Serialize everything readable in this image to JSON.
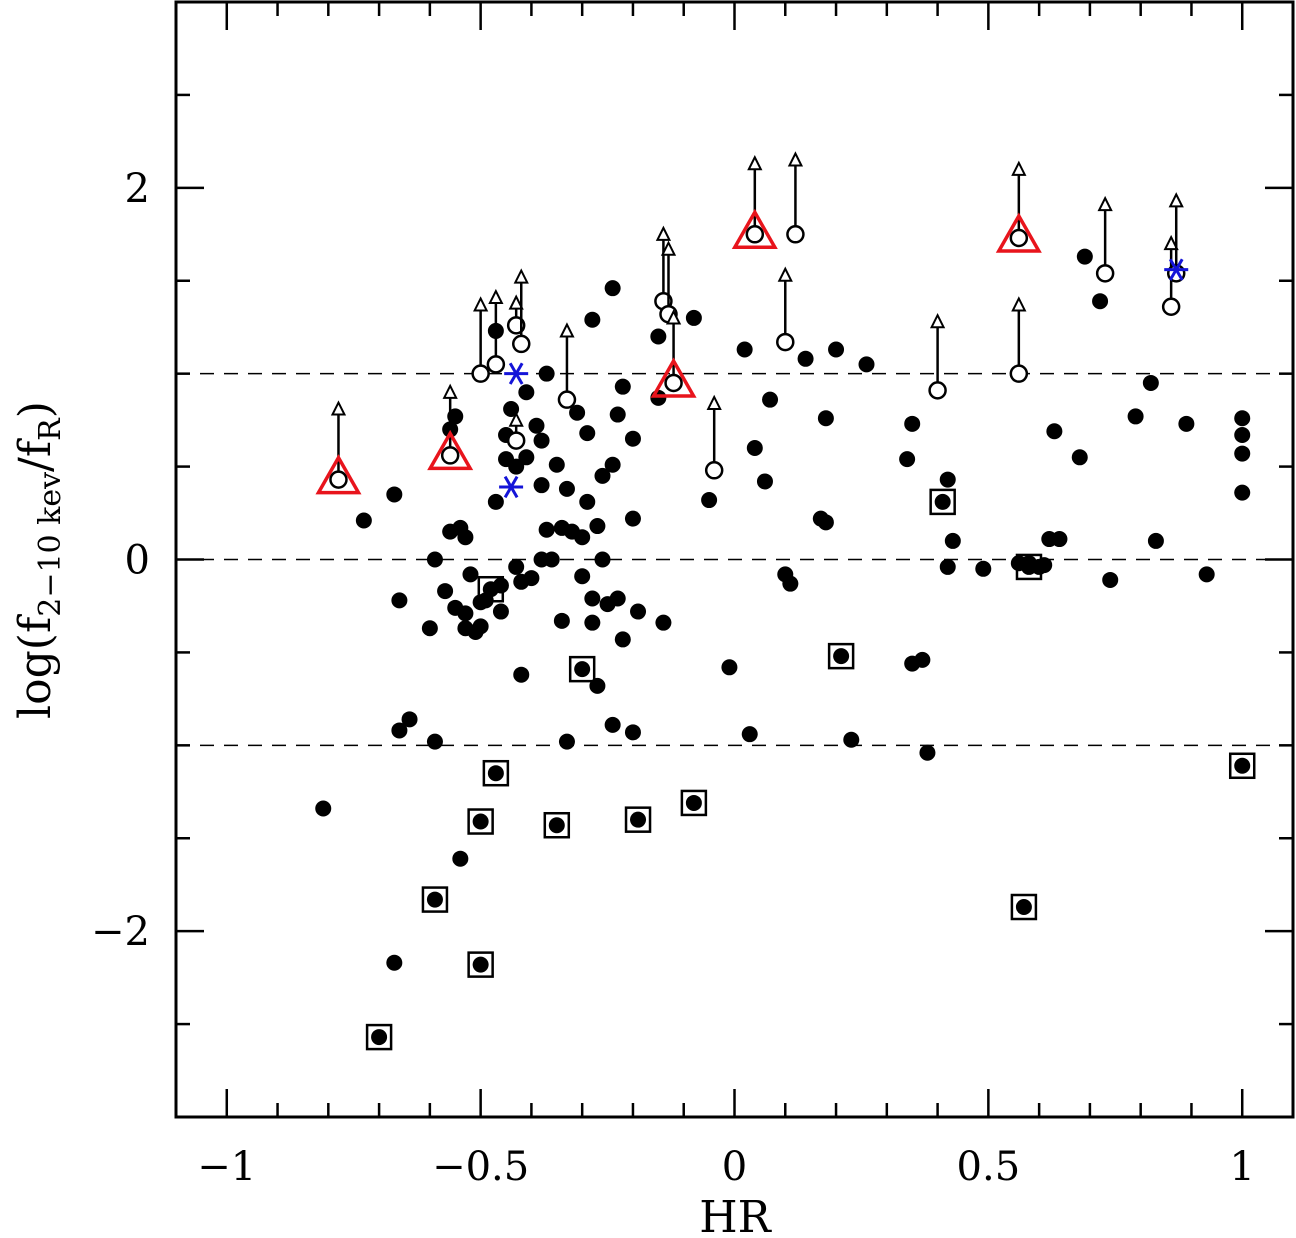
{
  "chart_data": {
    "type": "scatter",
    "title": "",
    "xlabel": "HR",
    "ylabel": "log(f",
    "ylabel_sub": "2−10 kev",
    "ylabel_mid": "/f",
    "ylabel_sub2": "R",
    "ylabel_end": ")",
    "xlim": [
      -1.1,
      1.1
    ],
    "ylim": [
      -3.0,
      3.0
    ],
    "x_ticks": [
      {
        "value": -1,
        "label": "−1"
      },
      {
        "value": -0.5,
        "label": "−0.5"
      },
      {
        "value": 0,
        "label": "0"
      },
      {
        "value": 0.5,
        "label": "0.5"
      },
      {
        "value": 1,
        "label": "1"
      }
    ],
    "y_ticks": [
      {
        "value": -2,
        "label": "−2"
      },
      {
        "value": 0,
        "label": "0"
      },
      {
        "value": 2,
        "label": "2"
      }
    ],
    "x_minor_step": 0.1,
    "y_minor_step": 0.5,
    "reference_lines": [
      1,
      0,
      -1
    ],
    "colors": {
      "filled": "#000000",
      "triangle": "#e8141c",
      "star": "#1414d8"
    },
    "series": [
      {
        "marker": "filled-circle",
        "points": [
          [
            -0.81,
            -1.34
          ],
          [
            -0.73,
            0.21
          ],
          [
            -0.67,
            0.35
          ],
          [
            -0.67,
            -2.17
          ],
          [
            -0.66,
            -0.22
          ],
          [
            -0.66,
            -0.92
          ],
          [
            -0.64,
            -0.86
          ],
          [
            -0.6,
            -0.37
          ],
          [
            -0.59,
            0.0
          ],
          [
            -0.59,
            -0.98
          ],
          [
            -0.57,
            -0.17
          ],
          [
            -0.56,
            0.7
          ],
          [
            -0.56,
            0.15
          ],
          [
            -0.55,
            0.77
          ],
          [
            -0.55,
            -0.26
          ],
          [
            -0.54,
            0.17
          ],
          [
            -0.54,
            -1.61
          ],
          [
            -0.53,
            0.12
          ],
          [
            -0.53,
            -0.29
          ],
          [
            -0.53,
            -0.37
          ],
          [
            -0.52,
            -0.08
          ],
          [
            -0.51,
            -0.39
          ],
          [
            -0.5,
            -0.36
          ],
          [
            -0.5,
            -0.23
          ],
          [
            -0.49,
            -0.22
          ],
          [
            -0.47,
            1.23
          ],
          [
            -0.47,
            0.31
          ],
          [
            -0.46,
            -0.14
          ],
          [
            -0.46,
            -0.28
          ],
          [
            -0.45,
            0.67
          ],
          [
            -0.45,
            0.54
          ],
          [
            -0.44,
            0.81
          ],
          [
            -0.43,
            0.5
          ],
          [
            -0.43,
            -0.04
          ],
          [
            -0.42,
            -0.12
          ],
          [
            -0.42,
            -0.62
          ],
          [
            -0.41,
            0.9
          ],
          [
            -0.41,
            0.55
          ],
          [
            -0.4,
            -0.1
          ],
          [
            -0.39,
            0.72
          ],
          [
            -0.38,
            0.64
          ],
          [
            -0.38,
            0.4
          ],
          [
            -0.38,
            0.0
          ],
          [
            -0.37,
            0.16
          ],
          [
            -0.37,
            1.0
          ],
          [
            -0.36,
            0.0
          ],
          [
            -0.35,
            0.51
          ],
          [
            -0.34,
            0.17
          ],
          [
            -0.34,
            -0.33
          ],
          [
            -0.33,
            0.38
          ],
          [
            -0.33,
            -0.98
          ],
          [
            -0.32,
            0.15
          ],
          [
            -0.31,
            0.79
          ],
          [
            -0.3,
            0.12
          ],
          [
            -0.3,
            -0.09
          ],
          [
            -0.29,
            0.31
          ],
          [
            -0.29,
            0.68
          ],
          [
            -0.28,
            1.29
          ],
          [
            -0.28,
            -0.21
          ],
          [
            -0.28,
            -0.34
          ],
          [
            -0.27,
            0.18
          ],
          [
            -0.27,
            -0.68
          ],
          [
            -0.26,
            0.45
          ],
          [
            -0.26,
            0.0
          ],
          [
            -0.25,
            -0.24
          ],
          [
            -0.24,
            1.46
          ],
          [
            -0.24,
            0.51
          ],
          [
            -0.24,
            -0.89
          ],
          [
            -0.23,
            0.78
          ],
          [
            -0.23,
            -0.21
          ],
          [
            -0.22,
            0.93
          ],
          [
            -0.22,
            -0.43
          ],
          [
            -0.2,
            0.65
          ],
          [
            -0.2,
            0.22
          ],
          [
            -0.2,
            -0.93
          ],
          [
            -0.19,
            -0.28
          ],
          [
            -0.15,
            0.87
          ],
          [
            -0.15,
            1.2
          ],
          [
            -0.14,
            -0.34
          ],
          [
            -0.08,
            1.3
          ],
          [
            -0.05,
            0.32
          ],
          [
            -0.01,
            -0.58
          ],
          [
            0.02,
            1.13
          ],
          [
            0.03,
            -0.94
          ],
          [
            0.04,
            0.6
          ],
          [
            0.06,
            0.42
          ],
          [
            0.07,
            0.86
          ],
          [
            0.1,
            -0.08
          ],
          [
            0.11,
            -0.13
          ],
          [
            0.14,
            1.08
          ],
          [
            0.17,
            0.22
          ],
          [
            0.18,
            0.2
          ],
          [
            0.18,
            0.76
          ],
          [
            0.2,
            1.13
          ],
          [
            0.23,
            -0.97
          ],
          [
            0.26,
            1.05
          ],
          [
            0.34,
            0.54
          ],
          [
            0.35,
            0.73
          ],
          [
            0.35,
            -0.56
          ],
          [
            0.37,
            -0.54
          ],
          [
            0.38,
            -1.04
          ],
          [
            0.42,
            0.43
          ],
          [
            0.42,
            -0.04
          ],
          [
            0.43,
            0.1
          ],
          [
            0.49,
            -0.05
          ],
          [
            0.56,
            -0.02
          ],
          [
            0.58,
            -0.02
          ],
          [
            0.6,
            -0.04
          ],
          [
            0.61,
            -0.03
          ],
          [
            0.62,
            0.11
          ],
          [
            0.63,
            0.69
          ],
          [
            0.64,
            0.11
          ],
          [
            0.68,
            0.55
          ],
          [
            0.69,
            1.63
          ],
          [
            0.72,
            1.39
          ],
          [
            0.74,
            -0.11
          ],
          [
            0.79,
            0.77
          ],
          [
            0.82,
            0.95
          ],
          [
            0.83,
            0.1
          ],
          [
            0.89,
            0.73
          ],
          [
            0.93,
            -0.08
          ],
          [
            1.0,
            0.76
          ],
          [
            1.0,
            0.67
          ],
          [
            1.0,
            0.57
          ],
          [
            1.0,
            0.36
          ]
        ]
      },
      {
        "marker": "boxed-circle",
        "points": [
          [
            -0.7,
            -2.57
          ],
          [
            -0.59,
            -1.83
          ],
          [
            -0.5,
            -2.18
          ],
          [
            -0.5,
            -1.41
          ],
          [
            -0.48,
            -0.16
          ],
          [
            -0.47,
            -1.15
          ],
          [
            -0.35,
            -1.43
          ],
          [
            -0.3,
            -0.59
          ],
          [
            -0.19,
            -1.4
          ],
          [
            -0.08,
            -1.31
          ],
          [
            0.21,
            -0.52
          ],
          [
            0.41,
            0.31
          ],
          [
            0.57,
            -1.87
          ],
          [
            0.58,
            -0.04
          ],
          [
            1.0,
            -1.11
          ]
        ]
      },
      {
        "marker": "upper-limit",
        "points": [
          [
            -0.78,
            0.43,
            0.78
          ],
          [
            -0.56,
            0.56,
            0.87
          ],
          [
            -0.5,
            1.0,
            1.34
          ],
          [
            -0.47,
            1.05,
            1.38
          ],
          [
            -0.43,
            0.64,
            0.72
          ],
          [
            -0.43,
            1.26,
            1.35
          ],
          [
            -0.42,
            1.16,
            1.49
          ],
          [
            -0.33,
            0.86,
            1.2
          ],
          [
            -0.14,
            1.39,
            1.72
          ],
          [
            -0.13,
            1.32,
            1.64
          ],
          [
            -0.12,
            0.95,
            1.27
          ],
          [
            -0.04,
            0.48,
            0.81
          ],
          [
            0.04,
            1.75,
            2.1
          ],
          [
            0.12,
            1.75,
            2.12
          ],
          [
            0.1,
            1.17,
            1.5
          ],
          [
            0.4,
            0.91,
            1.25
          ],
          [
            0.56,
            1.0,
            1.34
          ],
          [
            0.56,
            1.73,
            2.07
          ],
          [
            0.73,
            1.54,
            1.88
          ],
          [
            0.86,
            1.36,
            1.67
          ],
          [
            0.87,
            1.54,
            1.9
          ]
        ]
      },
      {
        "marker": "red-triangle",
        "points": [
          [
            -0.78,
            0.43
          ],
          [
            -0.56,
            0.56
          ],
          [
            -0.12,
            0.95
          ],
          [
            0.04,
            1.75
          ],
          [
            0.56,
            1.73
          ]
        ]
      },
      {
        "marker": "blue-star",
        "points": [
          [
            -0.43,
            1.0
          ],
          [
            -0.44,
            0.39
          ],
          [
            0.87,
            1.56
          ]
        ]
      }
    ]
  }
}
